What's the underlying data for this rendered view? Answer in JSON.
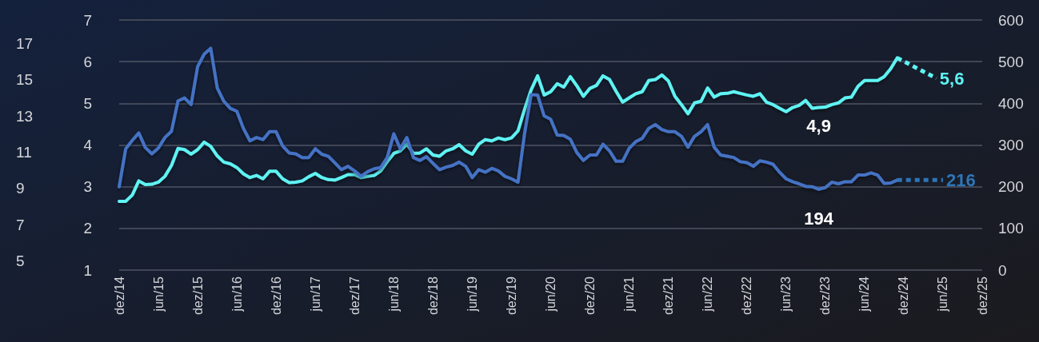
{
  "chart_data": {
    "type": "line",
    "categories": [
      "dez/14",
      null,
      null,
      null,
      null,
      null,
      "jun/15",
      null,
      null,
      null,
      null,
      null,
      "dez/15",
      null,
      null,
      null,
      null,
      null,
      "jun/16",
      null,
      null,
      null,
      null,
      null,
      "dez/16",
      null,
      null,
      null,
      null,
      null,
      "jun/17",
      null,
      null,
      null,
      null,
      null,
      "dez/17",
      null,
      null,
      null,
      null,
      null,
      "jun/18",
      null,
      null,
      null,
      null,
      null,
      "dez/18",
      null,
      null,
      null,
      null,
      null,
      "jun/19",
      null,
      null,
      null,
      null,
      null,
      "dez/19",
      null,
      null,
      null,
      null,
      null,
      "jun/20",
      null,
      null,
      null,
      null,
      null,
      "dez/20",
      null,
      null,
      null,
      null,
      null,
      "jun/21",
      null,
      null,
      null,
      null,
      null,
      "dez/21",
      null,
      null,
      null,
      null,
      null,
      "jun/22",
      null,
      null,
      null,
      null,
      null,
      "dez/22",
      null,
      null,
      null,
      null,
      null,
      "jun/23",
      null,
      null,
      null,
      null,
      null,
      "dez/23",
      null,
      null,
      null,
      null,
      null,
      "jun/24",
      null,
      null,
      null,
      null,
      null,
      "dez/24",
      null,
      null,
      null,
      null,
      null,
      "jun/25",
      null,
      null,
      null,
      null,
      null,
      "dez/25"
    ],
    "series": [
      {
        "color": "#5ef3f3",
        "line_style": "solid",
        "values": [
          2.65,
          2.65,
          2.8,
          3.14,
          3.05,
          3.06,
          3.11,
          3.25,
          3.51,
          3.92,
          3.89,
          3.78,
          3.89,
          4.07,
          3.97,
          3.74,
          3.59,
          3.55,
          3.46,
          3.31,
          3.22,
          3.27,
          3.19,
          3.37,
          3.37,
          3.19,
          3.1,
          3.11,
          3.14,
          3.24,
          3.32,
          3.22,
          3.17,
          3.16,
          3.22,
          3.29,
          3.29,
          3.22,
          3.25,
          3.27,
          3.38,
          3.6,
          3.8,
          3.86,
          4.02,
          3.8,
          3.81,
          3.91,
          3.76,
          3.73,
          3.86,
          3.91,
          4.01,
          3.86,
          3.78,
          4.02,
          4.13,
          4.1,
          4.17,
          4.13,
          4.17,
          4.34,
          4.85,
          5.32,
          5.66,
          5.2,
          5.28,
          5.47,
          5.39,
          5.64,
          5.42,
          5.17,
          5.36,
          5.43,
          5.66,
          5.57,
          5.29,
          5.03,
          5.13,
          5.23,
          5.28,
          5.55,
          5.57,
          5.68,
          5.54,
          5.17,
          4.97,
          4.75,
          5.01,
          5.05,
          5.37,
          5.15,
          5.23,
          5.24,
          5.28,
          5.24,
          5.2,
          5.17,
          5.23,
          5.03,
          4.97,
          4.88,
          4.8,
          4.9,
          4.95,
          5.07,
          4.88,
          4.9,
          4.91,
          4.97,
          5.01,
          5.13,
          5.15,
          5.41,
          5.55,
          5.55,
          5.55,
          5.64,
          5.83,
          6.09,
          null,
          null,
          null,
          null,
          null,
          null,
          null,
          null,
          null,
          null,
          null,
          null,
          null
        ],
        "value_labels": [
          null,
          null,
          null,
          null,
          null,
          null,
          null,
          null,
          null,
          null,
          null,
          null,
          null,
          null,
          null,
          null,
          null,
          null,
          null,
          null,
          null,
          null,
          null,
          null,
          null,
          null,
          null,
          null,
          null,
          null,
          null,
          null,
          null,
          null,
          null,
          null,
          null,
          null,
          null,
          null,
          null,
          null,
          null,
          null,
          null,
          null,
          null,
          null,
          null,
          null,
          null,
          null,
          null,
          null,
          null,
          null,
          null,
          null,
          null,
          null,
          null,
          null,
          null,
          null,
          null,
          null,
          null,
          null,
          null,
          null,
          null,
          null,
          null,
          null,
          null,
          null,
          null,
          null,
          null,
          null,
          null,
          null,
          null,
          null,
          null,
          null,
          null,
          null,
          null,
          null,
          null,
          null,
          null,
          null,
          null,
          null,
          null,
          null,
          null,
          null,
          null,
          null,
          null,
          null,
          null,
          null,
          null,
          "4,9",
          null,
          null,
          null,
          null,
          null,
          null,
          null,
          null,
          null,
          null,
          null,
          null,
          null,
          null,
          null,
          null,
          null,
          null,
          null,
          null,
          null,
          null,
          null,
          null,
          null
        ]
      },
      {
        "color": "#4472c4",
        "axis": "y2",
        "line_style": "solid",
        "values": [
          200,
          291,
          311,
          329,
          294,
          279,
          293,
          318,
          333,
          406,
          413,
          397,
          488,
          518,
          532,
          437,
          405,
          388,
          381,
          340,
          310,
          318,
          313,
          332,
          332,
          298,
          281,
          279,
          270,
          270,
          291,
          278,
          273,
          257,
          241,
          249,
          238,
          225,
          236,
          243,
          246,
          270,
          327,
          291,
          318,
          270,
          263,
          272,
          256,
          241,
          247,
          251,
          259,
          249,
          222,
          241,
          235,
          244,
          238,
          225,
          219,
          211,
          327,
          421,
          420,
          370,
          362,
          324,
          323,
          314,
          282,
          263,
          276,
          276,
          302,
          286,
          261,
          261,
          292,
          308,
          316,
          340,
          349,
          337,
          332,
          332,
          321,
          295,
          321,
          332,
          349,
          295,
          276,
          273,
          270,
          260,
          258,
          249,
          262,
          259,
          254,
          235,
          219,
          212,
          207,
          201,
          200,
          194,
          198,
          211,
          207,
          212,
          212,
          228,
          228,
          233,
          228,
          208,
          209,
          216,
          null,
          null,
          null,
          null,
          null,
          null,
          null,
          null,
          null,
          null,
          null,
          null,
          null
        ],
        "value_labels": [
          null,
          null,
          null,
          null,
          null,
          null,
          null,
          null,
          null,
          null,
          null,
          null,
          null,
          null,
          null,
          null,
          null,
          null,
          null,
          null,
          null,
          null,
          null,
          null,
          null,
          null,
          null,
          null,
          null,
          null,
          null,
          null,
          null,
          null,
          null,
          null,
          null,
          null,
          null,
          null,
          null,
          null,
          null,
          null,
          null,
          null,
          null,
          null,
          null,
          null,
          null,
          null,
          null,
          null,
          null,
          null,
          null,
          null,
          null,
          null,
          null,
          null,
          null,
          null,
          null,
          null,
          null,
          null,
          null,
          null,
          null,
          null,
          null,
          null,
          null,
          null,
          null,
          null,
          null,
          null,
          null,
          null,
          null,
          null,
          null,
          null,
          null,
          null,
          null,
          null,
          null,
          null,
          null,
          null,
          null,
          null,
          null,
          null,
          null,
          null,
          null,
          null,
          null,
          null,
          null,
          null,
          null,
          "194",
          null,
          null,
          null,
          null,
          null,
          null,
          null,
          null,
          null,
          null,
          null,
          null,
          null,
          null,
          null,
          null,
          null,
          null,
          null,
          null,
          null,
          null,
          null,
          null,
          null
        ]
      },
      {
        "color": "#5ef3f3",
        "line_style": "dotted",
        "values": [
          null,
          null,
          null,
          null,
          null,
          null,
          null,
          null,
          null,
          null,
          null,
          null,
          null,
          null,
          null,
          null,
          null,
          null,
          null,
          null,
          null,
          null,
          null,
          null,
          null,
          null,
          null,
          null,
          null,
          null,
          null,
          null,
          null,
          null,
          null,
          null,
          null,
          null,
          null,
          null,
          null,
          null,
          null,
          null,
          null,
          null,
          null,
          null,
          null,
          null,
          null,
          null,
          null,
          null,
          null,
          null,
          null,
          null,
          null,
          null,
          null,
          null,
          null,
          null,
          null,
          null,
          null,
          null,
          null,
          null,
          null,
          null,
          null,
          null,
          null,
          null,
          null,
          null,
          null,
          null,
          null,
          null,
          null,
          null,
          null,
          null,
          null,
          null,
          null,
          null,
          null,
          null,
          null,
          null,
          null,
          null,
          null,
          null,
          null,
          null,
          null,
          null,
          null,
          null,
          null,
          null,
          null,
          null,
          null,
          null,
          null,
          null,
          null,
          null,
          null,
          null,
          null,
          null,
          null,
          6.09,
          null,
          null,
          null,
          null,
          null,
          5.6,
          null,
          null,
          null,
          null,
          null,
          null,
          null
        ],
        "value_labels": [
          null,
          null,
          null,
          null,
          null,
          null,
          null,
          null,
          null,
          null,
          null,
          null,
          null,
          null,
          null,
          null,
          null,
          null,
          null,
          null,
          null,
          null,
          null,
          null,
          null,
          null,
          null,
          null,
          null,
          null,
          null,
          null,
          null,
          null,
          null,
          null,
          null,
          null,
          null,
          null,
          null,
          null,
          null,
          null,
          null,
          null,
          null,
          null,
          null,
          null,
          null,
          null,
          null,
          null,
          null,
          null,
          null,
          null,
          null,
          null,
          null,
          null,
          null,
          null,
          null,
          null,
          null,
          null,
          null,
          null,
          null,
          null,
          null,
          null,
          null,
          null,
          null,
          null,
          null,
          null,
          null,
          null,
          null,
          null,
          null,
          null,
          null,
          null,
          null,
          null,
          null,
          null,
          null,
          null,
          null,
          null,
          null,
          null,
          null,
          null,
          null,
          null,
          null,
          null,
          null,
          null,
          null,
          null,
          null,
          null,
          null,
          null,
          null,
          null,
          null,
          null,
          null,
          null,
          null,
          null,
          null,
          null,
          null,
          null,
          null,
          "5,6",
          null,
          null,
          null,
          null,
          null,
          null,
          null
        ]
      },
      {
        "color": "#2e75b6",
        "axis": "y2",
        "line_style": "dotted",
        "values": [
          null,
          null,
          null,
          null,
          null,
          null,
          null,
          null,
          null,
          null,
          null,
          null,
          null,
          null,
          null,
          null,
          null,
          null,
          null,
          null,
          null,
          null,
          null,
          null,
          null,
          null,
          null,
          null,
          null,
          null,
          null,
          null,
          null,
          null,
          null,
          null,
          null,
          null,
          null,
          null,
          null,
          null,
          null,
          null,
          null,
          null,
          null,
          null,
          null,
          null,
          null,
          null,
          null,
          null,
          null,
          null,
          null,
          null,
          null,
          null,
          null,
          null,
          null,
          null,
          null,
          null,
          null,
          null,
          null,
          null,
          null,
          null,
          null,
          null,
          null,
          null,
          null,
          null,
          null,
          null,
          null,
          null,
          null,
          null,
          null,
          null,
          null,
          null,
          null,
          null,
          null,
          null,
          null,
          null,
          null,
          null,
          null,
          null,
          null,
          null,
          null,
          null,
          null,
          null,
          null,
          null,
          null,
          null,
          null,
          null,
          null,
          null,
          null,
          null,
          null,
          null,
          null,
          null,
          null,
          216,
          null,
          null,
          null,
          null,
          null,
          null,
          216,
          null,
          null,
          null,
          null,
          null,
          null
        ],
        "value_labels": [
          null,
          null,
          null,
          null,
          null,
          null,
          null,
          null,
          null,
          null,
          null,
          null,
          null,
          null,
          null,
          null,
          null,
          null,
          null,
          null,
          null,
          null,
          null,
          null,
          null,
          null,
          null,
          null,
          null,
          null,
          null,
          null,
          null,
          null,
          null,
          null,
          null,
          null,
          null,
          null,
          null,
          null,
          null,
          null,
          null,
          null,
          null,
          null,
          null,
          null,
          null,
          null,
          null,
          null,
          null,
          null,
          null,
          null,
          null,
          null,
          null,
          null,
          null,
          null,
          null,
          null,
          null,
          null,
          null,
          null,
          null,
          null,
          null,
          null,
          null,
          null,
          null,
          null,
          null,
          null,
          null,
          null,
          null,
          null,
          null,
          null,
          null,
          null,
          null,
          null,
          null,
          null,
          null,
          null,
          null,
          null,
          null,
          null,
          null,
          null,
          null,
          null,
          null,
          null,
          null,
          null,
          null,
          null,
          null,
          null,
          null,
          null,
          null,
          null,
          null,
          null,
          null,
          null,
          null,
          null,
          null,
          null,
          null,
          null,
          null,
          null,
          "216",
          null,
          null,
          null,
          null,
          null,
          null
        ]
      }
    ],
    "ylim": [
      1,
      7
    ],
    "yticks": [
      1,
      2,
      3,
      4,
      5,
      6,
      7
    ],
    "y2lim": [
      0,
      600
    ],
    "y2ticks": [
      0,
      100,
      200,
      300,
      400,
      500,
      600
    ],
    "y3lim": [
      4.5,
      18.3
    ],
    "y3ticks": [
      5,
      7,
      9,
      11,
      13,
      15,
      17
    ],
    "grid": "y"
  }
}
